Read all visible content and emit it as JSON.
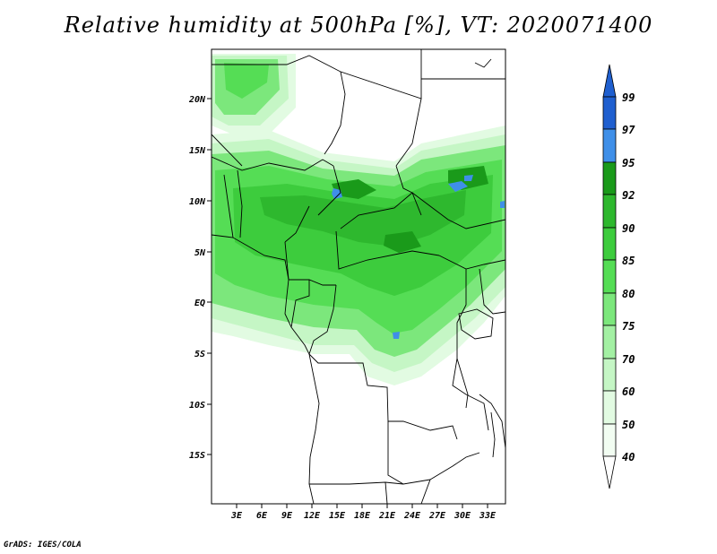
{
  "title": "Relative humidity at 500hPa [%], VT: 2020071400",
  "credit": "GrADS: IGES/COLA",
  "map": {
    "lat_ticks": [
      "20N",
      "15N",
      "10N",
      "5N",
      "EQ",
      "5S",
      "10S",
      "15S"
    ],
    "lon_ticks": [
      "3E",
      "6E",
      "9E",
      "12E",
      "15E",
      "18E",
      "21E",
      "24E",
      "27E",
      "30E",
      "33E"
    ]
  },
  "colorbar": {
    "levels": [
      "99",
      "97",
      "95",
      "92",
      "90",
      "85",
      "80",
      "75",
      "70",
      "60",
      "50",
      "40"
    ],
    "colors": [
      "#1f5fcf",
      "#3f8fe8",
      "#1a9a1a",
      "#2eb82e",
      "#3dcc3d",
      "#55dd55",
      "#7ce77c",
      "#a3f0a3",
      "#c5f6c5",
      "#e2fbe2",
      "#f2fdf2",
      "#ffffff"
    ]
  }
}
